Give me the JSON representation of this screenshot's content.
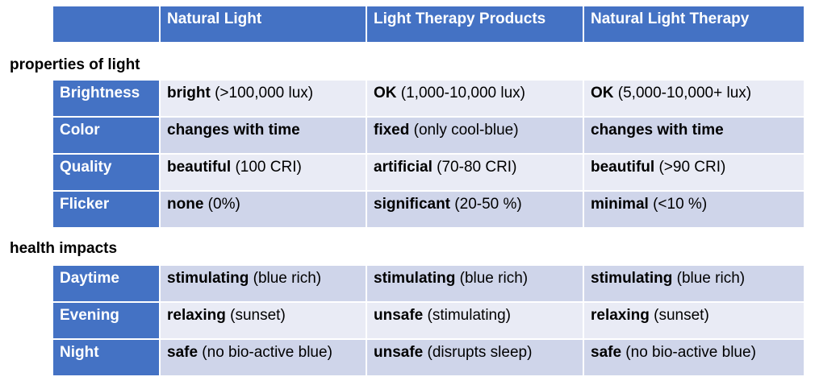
{
  "header": {
    "columns": [
      "",
      "Natural Light",
      "Light Therapy Products",
      "Natural Light Therapy"
    ]
  },
  "sections": [
    {
      "title": "properties of light",
      "rows": [
        {
          "label": "Brightness",
          "cells": [
            {
              "bold": "bright",
              "rest": " (>100,000 lux)"
            },
            {
              "bold": "OK",
              "rest": " (1,000-10,000 lux)"
            },
            {
              "bold": "OK",
              "rest": " (5,000-10,000+ lux)"
            }
          ]
        },
        {
          "label": "Color",
          "cells": [
            {
              "bold": "changes with time",
              "rest": ""
            },
            {
              "bold": "fixed",
              "rest": " (only cool-blue)"
            },
            {
              "bold": "changes with time",
              "rest": ""
            }
          ]
        },
        {
          "label": "Quality",
          "cells": [
            {
              "bold": "beautiful",
              "rest": " (100 CRI)"
            },
            {
              "bold": "artificial",
              "rest": " (70-80 CRI)"
            },
            {
              "bold": "beautiful",
              "rest": " (>90 CRI)"
            }
          ]
        },
        {
          "label": "Flicker",
          "cells": [
            {
              "bold": "none",
              "rest": " (0%)"
            },
            {
              "bold": "significant",
              "rest": " (20-50 %)"
            },
            {
              "bold": "minimal",
              "rest": " (<10 %)"
            }
          ]
        }
      ]
    },
    {
      "title": "health impacts",
      "rows": [
        {
          "label": "Daytime",
          "cells": [
            {
              "bold": "stimulating",
              "rest": " (blue rich)"
            },
            {
              "bold": "stimulating",
              "rest": " (blue rich)"
            },
            {
              "bold": "stimulating",
              "rest": " (blue rich)"
            }
          ]
        },
        {
          "label": "Evening",
          "cells": [
            {
              "bold": "relaxing",
              "rest": " (sunset)"
            },
            {
              "bold": "unsafe",
              "rest": " (stimulating)"
            },
            {
              "bold": "relaxing",
              "rest": " (sunset)"
            }
          ]
        },
        {
          "label": "Night",
          "cells": [
            {
              "bold": "safe",
              "rest": " (no bio-active blue)"
            },
            {
              "bold": "unsafe",
              "rest": " (disrupts sleep)"
            },
            {
              "bold": "safe",
              "rest": " (no bio-active blue)"
            }
          ]
        }
      ]
    }
  ],
  "colors": {
    "header": "#4472c4",
    "row_light": "#e9ebf5",
    "row_dark": "#cfd5ea"
  }
}
